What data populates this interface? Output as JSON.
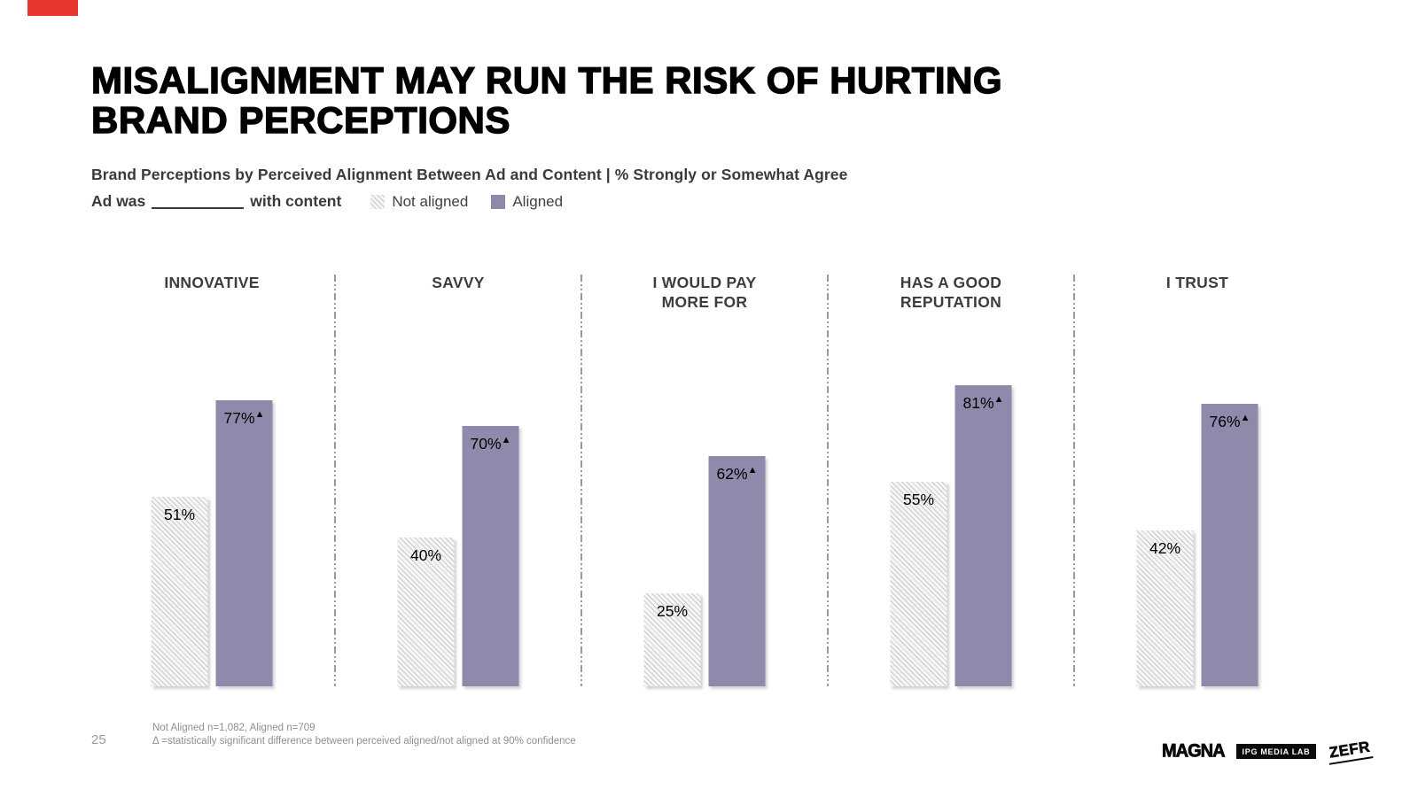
{
  "accent_color": "#e8382d",
  "title": {
    "line1": "MISALIGNMENT MAY RUN THE RISK OF HURTING",
    "line2": "BRAND PERCEPTIONS"
  },
  "subtitle": "Brand Perceptions by Perceived Alignment Between Ad and Content | % Strongly or Somewhat Agree",
  "prompt": {
    "prefix": "Ad was",
    "suffix": "with content"
  },
  "chart_data": {
    "type": "bar",
    "categories": [
      "INNOVATIVE",
      "SAVVY",
      "I WOULD PAY MORE FOR",
      "HAS A GOOD REPUTATION",
      "I TRUST"
    ],
    "series": [
      {
        "name": "Not aligned",
        "style": "hatched",
        "color": "#f6f6f6",
        "hatch_line_color": "#c9c9c9",
        "values": [
          51,
          40,
          25,
          55,
          42
        ],
        "marker": ""
      },
      {
        "name": "Aligned",
        "style": "solid",
        "color": "#8e8aab",
        "values": [
          77,
          70,
          62,
          81,
          76
        ],
        "marker": "▲"
      }
    ],
    "value_suffix": "%",
    "ylim": [
      0,
      100
    ],
    "grid": false,
    "legend_position": "top"
  },
  "footer": {
    "page_number": "25",
    "notes": [
      "Not Aligned n=1,082, Aligned n=709",
      "Δ =statistically significant difference between perceived aligned/not aligned at 90% confidence"
    ],
    "logos": [
      "MAGNA",
      "IPG MEDIA LAB",
      "ZEFR"
    ]
  }
}
